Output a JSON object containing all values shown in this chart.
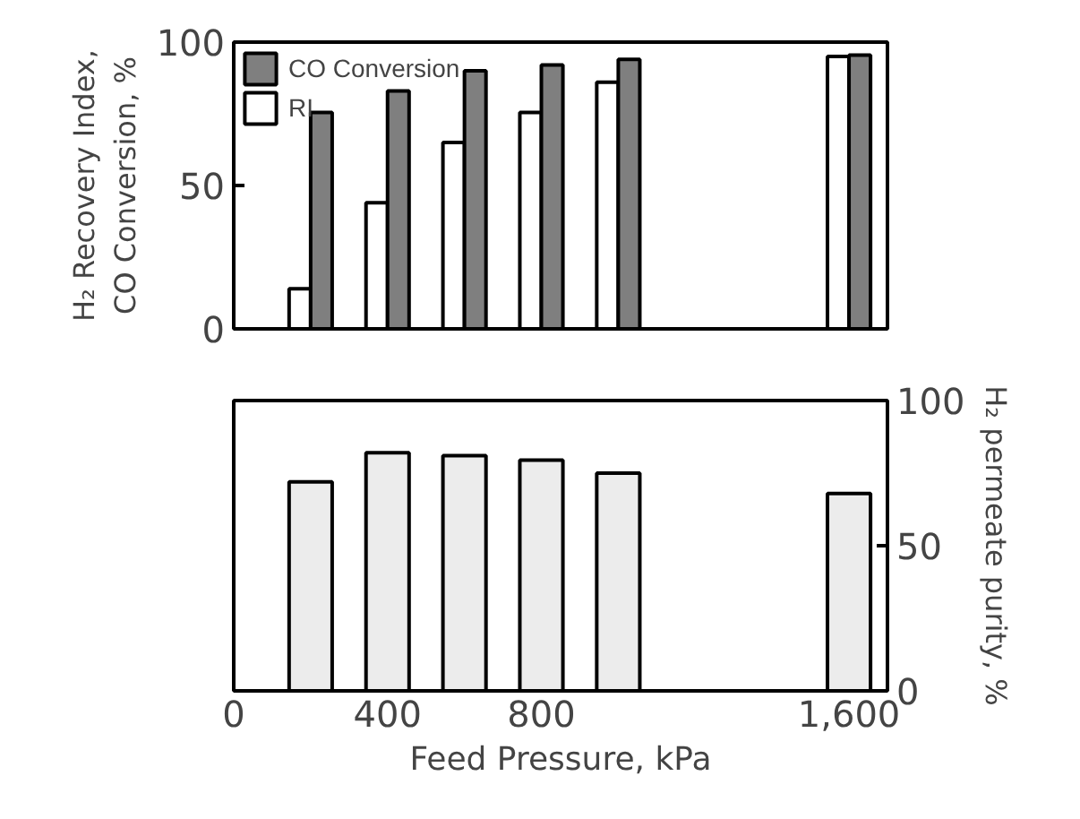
{
  "chart_data": [
    {
      "type": "bar",
      "x": [
        200,
        400,
        600,
        800,
        1000,
        1600
      ],
      "xlim": [
        0,
        1700
      ],
      "ylabel": "H₂ Recovery Index,\nCO Conversion, %",
      "ylim": [
        0,
        100
      ],
      "yticks": [
        0,
        50,
        100
      ],
      "tick_labels": "y",
      "series": [
        {
          "name": "RI",
          "color": "#ffffff",
          "values": [
            14,
            44,
            65,
            75.5,
            86,
            95
          ]
        },
        {
          "name": "CO Conversion",
          "color": "#7f7f7f",
          "values": [
            75.5,
            83,
            90,
            92,
            94,
            95.5
          ]
        }
      ],
      "legend": "top left"
    },
    {
      "type": "bar",
      "x": [
        200,
        400,
        600,
        800,
        1000,
        1600
      ],
      "xlim": [
        0,
        1700
      ],
      "xticks": [
        0,
        400,
        800,
        {
          "value": 1600,
          "label": "1,600"
        }
      ],
      "xlabel": "Feed Pressure, kPa",
      "y2label": "H₂ permeate purity, %",
      "y2lim": [
        0,
        100
      ],
      "y2ticks": [
        0,
        50,
        100
      ],
      "series": [
        {
          "color": "#ececec",
          "axis": "y2",
          "values": [
            72,
            82,
            81,
            79.5,
            75,
            68
          ]
        }
      ]
    }
  ]
}
